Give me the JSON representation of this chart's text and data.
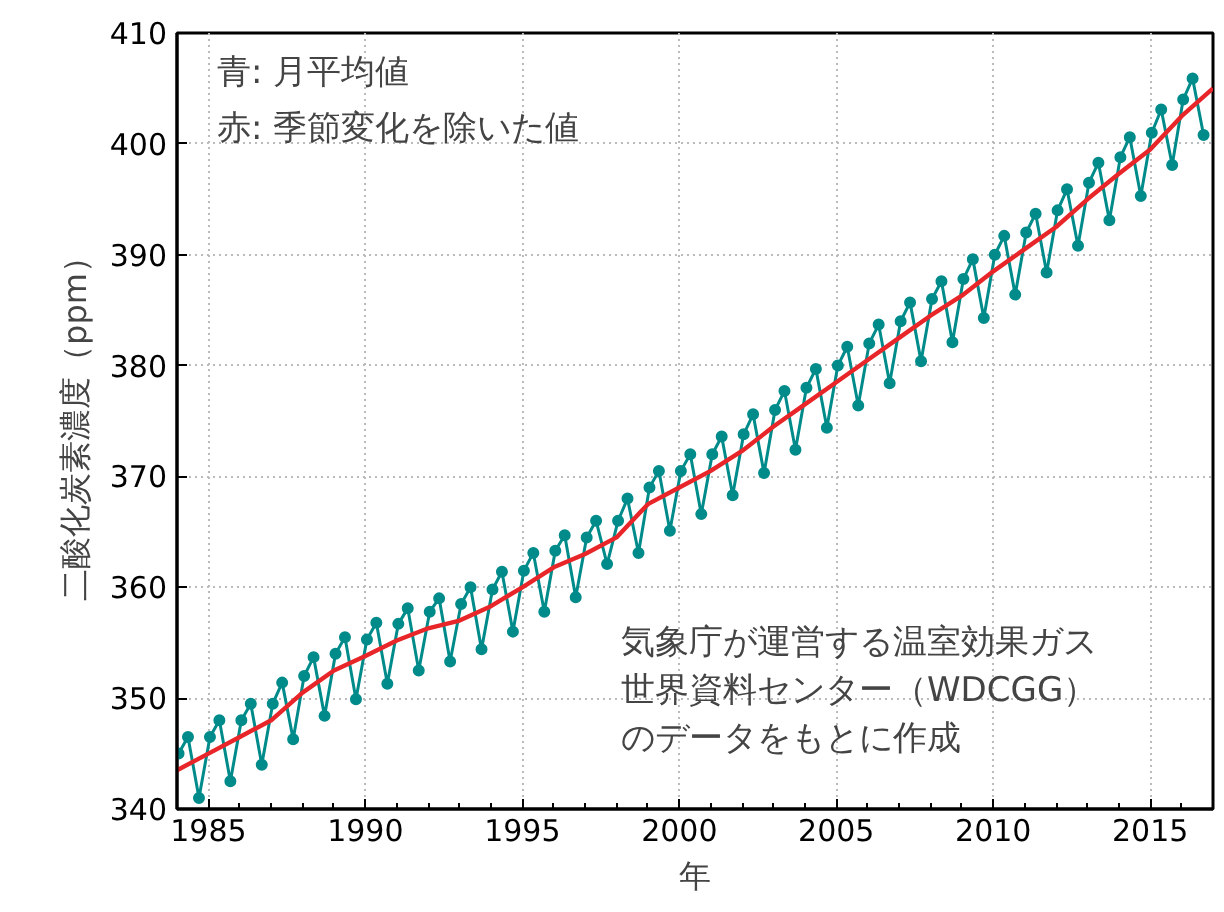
{
  "chart_data": {
    "type": "line",
    "xlabel": "年",
    "ylabel": "二酸化炭素濃度（ppm）",
    "xlim": [
      1984,
      2017
    ],
    "xticks": [
      1985,
      1990,
      1995,
      2000,
      2005,
      2010,
      2015
    ],
    "ylim": [
      340,
      410
    ],
    "yticks": [
      340,
      350,
      360,
      370,
      380,
      390,
      400,
      410
    ],
    "grid": true,
    "line_style": "solid",
    "annotations": [
      "青: 月平均値",
      "赤: 季節変化を除いた値",
      "気象庁が運営する温室効果ガス",
      "世界資料センター（WDCGG）",
      "のデータをもとに作成"
    ],
    "series": [
      {
        "color": "#008b8b",
        "marker": "circle",
        "x": [
          1984.05,
          1984.35,
          1984.7,
          1985.05,
          1985.35,
          1985.7,
          1986.05,
          1986.35,
          1986.7,
          1987.05,
          1987.35,
          1987.7,
          1988.05,
          1988.35,
          1988.7,
          1989.05,
          1989.35,
          1989.7,
          1990.05,
          1990.35,
          1990.7,
          1991.05,
          1991.35,
          1991.7,
          1992.05,
          1992.35,
          1992.7,
          1993.05,
          1993.35,
          1993.7,
          1994.05,
          1994.35,
          1994.7,
          1995.05,
          1995.35,
          1995.7,
          1996.05,
          1996.35,
          1996.7,
          1997.05,
          1997.35,
          1997.7,
          1998.05,
          1998.35,
          1998.7,
          1999.05,
          1999.35,
          1999.7,
          2000.05,
          2000.35,
          2000.7,
          2001.05,
          2001.35,
          2001.7,
          2002.05,
          2002.35,
          2002.7,
          2003.05,
          2003.35,
          2003.7,
          2004.05,
          2004.35,
          2004.7,
          2005.05,
          2005.35,
          2005.7,
          2006.05,
          2006.35,
          2006.7,
          2007.05,
          2007.35,
          2007.7,
          2008.05,
          2008.35,
          2008.7,
          2009.05,
          2009.35,
          2009.7,
          2010.05,
          2010.35,
          2010.7,
          2011.05,
          2011.35,
          2011.7,
          2012.05,
          2012.35,
          2012.7,
          2013.05,
          2013.35,
          2013.7,
          2014.05,
          2014.35,
          2014.7,
          2015.05,
          2015.35,
          2015.7,
          2016.05,
          2016.35,
          2016.7
        ],
        "values": [
          345.0,
          346.5,
          341.0,
          346.5,
          348.0,
          342.5,
          348.0,
          349.5,
          344.0,
          349.5,
          351.4,
          346.3,
          352.0,
          353.7,
          348.4,
          354.0,
          355.5,
          349.9,
          355.3,
          356.8,
          351.3,
          356.7,
          358.1,
          352.5,
          357.8,
          359.0,
          353.3,
          358.5,
          360.0,
          354.4,
          359.8,
          361.4,
          356.0,
          361.5,
          363.1,
          357.8,
          363.3,
          364.7,
          359.1,
          364.5,
          366.0,
          362.1,
          366.0,
          368.0,
          363.1,
          369.0,
          370.5,
          365.1,
          370.5,
          372.0,
          366.6,
          372.0,
          373.6,
          368.3,
          373.8,
          375.6,
          370.3,
          376.0,
          377.7,
          372.4,
          378.0,
          379.7,
          374.4,
          380.0,
          381.7,
          376.4,
          382.0,
          383.7,
          378.4,
          384.0,
          385.7,
          380.4,
          386.0,
          387.6,
          382.1,
          387.8,
          389.6,
          384.3,
          390.0,
          391.7,
          386.4,
          392.0,
          393.7,
          388.4,
          394.0,
          395.9,
          390.8,
          396.5,
          398.3,
          393.1,
          398.8,
          400.6,
          395.3,
          401.0,
          403.1,
          398.1,
          404.0,
          405.9,
          400.8
        ]
      },
      {
        "color": "#e8262a",
        "marker": "none",
        "x": [
          1984,
          1985,
          1986,
          1987,
          1988,
          1989,
          1990,
          1991,
          1992,
          1993,
          1994,
          1995,
          1996,
          1997,
          1998,
          1999,
          2000,
          2001,
          2002,
          2003,
          2004,
          2005,
          2006,
          2007,
          2008,
          2009,
          2010,
          2011,
          2012,
          2013,
          2014,
          2015,
          2016,
          2017
        ],
        "values": [
          343.5,
          345,
          346.5,
          348,
          350.5,
          352.5,
          353.8,
          355.2,
          356.3,
          357,
          358.3,
          360,
          361.8,
          363,
          364.5,
          367.5,
          369,
          370.5,
          372.3,
          374.5,
          376.5,
          378.5,
          380.5,
          382.5,
          384.5,
          386.3,
          388.5,
          390.5,
          392.5,
          395,
          397.3,
          399.5,
          402.5,
          405
        ]
      }
    ]
  }
}
